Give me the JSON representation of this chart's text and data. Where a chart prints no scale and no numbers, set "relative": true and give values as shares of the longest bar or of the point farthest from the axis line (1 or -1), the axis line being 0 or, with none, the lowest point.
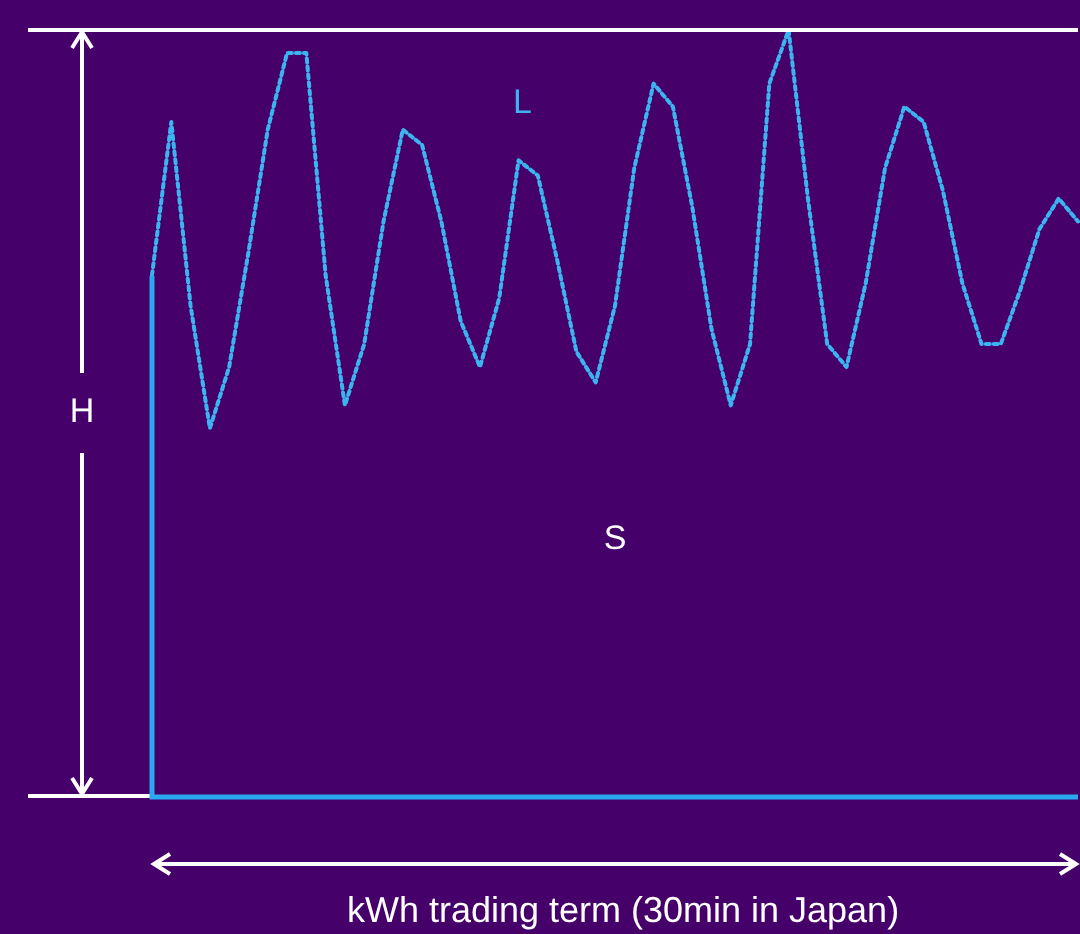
{
  "chart_data": {
    "type": "line",
    "relative": true,
    "xlabel": "kWh trading term (30min in Japan)",
    "line_style": "dotted",
    "legend": false,
    "categories": [
      null,
      null,
      null,
      null,
      null,
      null,
      null,
      null,
      null,
      null,
      null,
      null,
      null,
      null,
      null,
      null,
      null,
      null,
      null,
      null,
      null,
      null,
      null,
      null,
      null,
      null,
      null,
      null,
      null,
      null,
      null,
      null,
      null,
      null,
      null,
      null,
      null,
      null,
      null,
      null,
      null,
      null,
      null,
      null,
      null,
      null,
      null,
      null,
      null
    ],
    "series": [
      {
        "color": "#3cb4f0",
        "values": [
          0.68,
          0.88,
          0.64,
          0.48,
          0.56,
          0.71,
          0.87,
          0.97,
          0.97,
          0.68,
          0.51,
          0.59,
          0.75,
          0.87,
          0.85,
          0.75,
          0.62,
          0.56,
          0.65,
          0.83,
          0.81,
          0.7,
          0.58,
          0.54,
          0.64,
          0.82,
          0.93,
          0.9,
          0.77,
          0.61,
          0.51,
          0.59,
          0.93,
          1.0,
          0.78,
          0.59,
          0.56,
          0.67,
          0.82,
          0.9,
          0.88,
          0.79,
          0.67,
          0.59,
          0.59,
          0.66,
          0.74,
          0.78,
          0.75
        ]
      }
    ],
    "annotations": [
      "L",
      "S",
      "H"
    ]
  }
}
